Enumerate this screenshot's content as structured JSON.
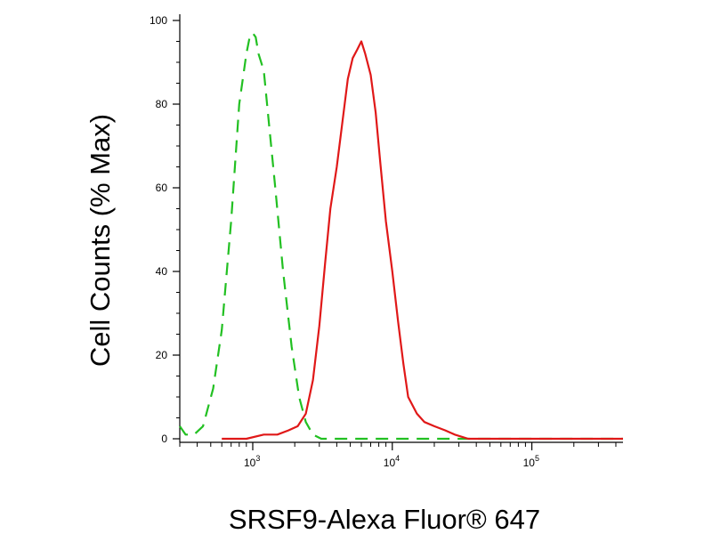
{
  "chart_data": {
    "type": "line",
    "title": "",
    "xlabel": "SRSF9-Alexa Fluor® 647",
    "ylabel": "Cell Counts (% Max)",
    "x_scale": "log",
    "xlim": [
      300,
      450000
    ],
    "ylim": [
      0,
      100
    ],
    "x_ticks": [
      {
        "value": 1000,
        "base": "10",
        "exp": "3"
      },
      {
        "value": 10000,
        "base": "10",
        "exp": "4"
      },
      {
        "value": 100000,
        "base": "10",
        "exp": "5"
      }
    ],
    "y_ticks": [
      0,
      20,
      40,
      60,
      80,
      100
    ],
    "grid": false,
    "legend": "none",
    "series": [
      {
        "color": "#22c022",
        "dash": "dashed",
        "x": [
          300,
          330,
          380,
          440,
          520,
          600,
          700,
          800,
          900,
          950,
          1000,
          1050,
          1100,
          1200,
          1300,
          1450,
          1650,
          1900,
          2150,
          2400,
          2700,
          3100,
          3600,
          5000,
          10000,
          20000,
          40000,
          100000,
          450000
        ],
        "y": [
          3,
          1,
          1,
          3,
          12,
          26,
          52,
          80,
          92,
          96,
          97,
          96,
          92,
          88,
          76,
          60,
          40,
          22,
          10,
          4,
          1,
          0,
          0,
          0,
          0,
          0,
          0,
          0,
          0
        ]
      },
      {
        "color": "#e01818",
        "dash": "solid",
        "x": [
          600,
          900,
          1200,
          1500,
          1800,
          2100,
          2400,
          2700,
          3000,
          3300,
          3600,
          4000,
          4400,
          4800,
          5200,
          5600,
          6000,
          6400,
          7000,
          7600,
          8200,
          9000,
          10000,
          11000,
          12000,
          13000,
          15000,
          17000,
          20000,
          24000,
          28000,
          35000,
          60000,
          150000,
          450000
        ],
        "y": [
          0,
          0,
          1,
          1,
          2,
          3,
          6,
          14,
          27,
          42,
          55,
          65,
          76,
          86,
          91,
          93,
          95,
          92,
          87,
          78,
          66,
          52,
          40,
          28,
          18,
          10,
          6,
          4,
          3,
          2,
          1,
          0,
          0,
          0,
          0
        ]
      }
    ]
  }
}
